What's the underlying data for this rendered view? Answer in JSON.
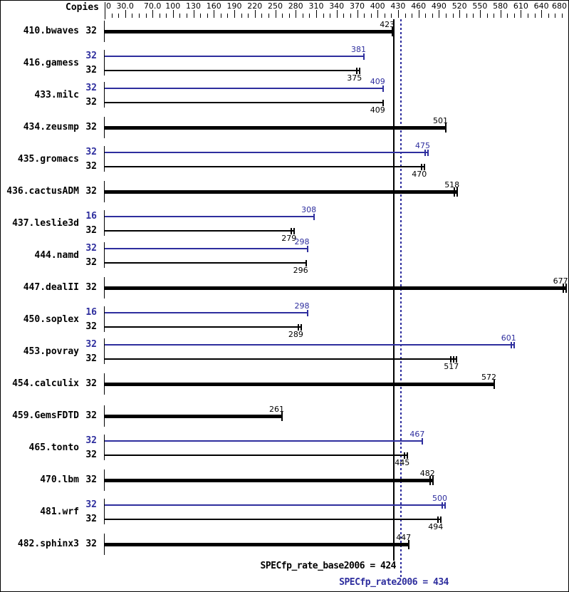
{
  "header": {
    "copies_label": "Copies"
  },
  "colors": {
    "peak": "#2e2e9e",
    "base": "#000000"
  },
  "axis": {
    "min": 0,
    "max": 680,
    "tick_step": 10,
    "labeled_ticks": [
      {
        "v": 0,
        "t": "0"
      },
      {
        "v": 30,
        "t": "30.0"
      },
      {
        "v": 70,
        "t": "70.0"
      },
      {
        "v": 100,
        "t": "100"
      },
      {
        "v": 130,
        "t": "130"
      },
      {
        "v": 160,
        "t": "160"
      },
      {
        "v": 190,
        "t": "190"
      },
      {
        "v": 220,
        "t": "220"
      },
      {
        "v": 250,
        "t": "250"
      },
      {
        "v": 280,
        "t": "280"
      },
      {
        "v": 310,
        "t": "310"
      },
      {
        "v": 340,
        "t": "340"
      },
      {
        "v": 370,
        "t": "370"
      },
      {
        "v": 400,
        "t": "400"
      },
      {
        "v": 430,
        "t": "430"
      },
      {
        "v": 460,
        "t": "460"
      },
      {
        "v": 490,
        "t": "490"
      },
      {
        "v": 520,
        "t": "520"
      },
      {
        "v": 550,
        "t": "550"
      },
      {
        "v": 580,
        "t": "580"
      },
      {
        "v": 610,
        "t": "610"
      },
      {
        "v": 640,
        "t": "640"
      },
      {
        "v": 680,
        "t": "680"
      }
    ]
  },
  "reference_lines": {
    "base": {
      "name": "SPECfp_rate_base2006",
      "value": 424,
      "text": "SPECfp_rate_base2006 = 424",
      "style": "solid"
    },
    "peak": {
      "name": "SPECfp_rate2006",
      "value": 434,
      "text": "SPECfp_rate2006 = 434",
      "style": "dotted"
    }
  },
  "chart_data": {
    "type": "bar",
    "orientation": "horizontal",
    "xlim": [
      0,
      680
    ],
    "title": "",
    "xlabel": "",
    "ylabel": "",
    "legend": "none",
    "benchmarks": [
      {
        "name": "410.bwaves",
        "runs": [
          {
            "kind": "base",
            "copies": 32,
            "value": 423,
            "marks": 1
          }
        ]
      },
      {
        "name": "416.gamess",
        "runs": [
          {
            "kind": "peak",
            "copies": 32,
            "value": 381,
            "marks": 1
          },
          {
            "kind": "base",
            "copies": 32,
            "value": 375,
            "marks": 2
          }
        ]
      },
      {
        "name": "433.milc",
        "runs": [
          {
            "kind": "peak",
            "copies": 32,
            "value": 409,
            "marks": 1
          },
          {
            "kind": "base",
            "copies": 32,
            "value": 409,
            "marks": 1
          }
        ]
      },
      {
        "name": "434.zeusmp",
        "runs": [
          {
            "kind": "base",
            "copies": 32,
            "value": 501,
            "marks": 1
          }
        ]
      },
      {
        "name": "435.gromacs",
        "runs": [
          {
            "kind": "peak",
            "copies": 32,
            "value": 475,
            "marks": 2
          },
          {
            "kind": "base",
            "copies": 32,
            "value": 470,
            "marks": 2
          }
        ]
      },
      {
        "name": "436.cactusADM",
        "runs": [
          {
            "kind": "base",
            "copies": 32,
            "value": 518,
            "marks": 2
          }
        ]
      },
      {
        "name": "437.leslie3d",
        "runs": [
          {
            "kind": "peak",
            "copies": 16,
            "value": 308,
            "marks": 1
          },
          {
            "kind": "base",
            "copies": 32,
            "value": 279,
            "marks": 2
          }
        ]
      },
      {
        "name": "444.namd",
        "runs": [
          {
            "kind": "peak",
            "copies": 32,
            "value": 298,
            "marks": 1
          },
          {
            "kind": "base",
            "copies": 32,
            "value": 296,
            "marks": 1
          }
        ]
      },
      {
        "name": "447.dealII",
        "runs": [
          {
            "kind": "base",
            "copies": 32,
            "value": 677,
            "marks": 2
          }
        ]
      },
      {
        "name": "450.soplex",
        "runs": [
          {
            "kind": "peak",
            "copies": 16,
            "value": 298,
            "marks": 1
          },
          {
            "kind": "base",
            "copies": 32,
            "value": 289,
            "marks": 2
          }
        ]
      },
      {
        "name": "453.povray",
        "runs": [
          {
            "kind": "peak",
            "copies": 32,
            "value": 601,
            "marks": 2
          },
          {
            "kind": "base",
            "copies": 32,
            "value": 517,
            "marks": 3
          }
        ]
      },
      {
        "name": "454.calculix",
        "runs": [
          {
            "kind": "base",
            "copies": 32,
            "value": 572,
            "marks": 1
          }
        ]
      },
      {
        "name": "459.GemsFDTD",
        "runs": [
          {
            "kind": "base",
            "copies": 32,
            "value": 261,
            "marks": 1
          }
        ]
      },
      {
        "name": "465.tonto",
        "runs": [
          {
            "kind": "peak",
            "copies": 32,
            "value": 467,
            "marks": 1
          },
          {
            "kind": "base",
            "copies": 32,
            "value": 445,
            "marks": 2
          }
        ]
      },
      {
        "name": "470.lbm",
        "runs": [
          {
            "kind": "base",
            "copies": 32,
            "value": 482,
            "marks": 2
          }
        ]
      },
      {
        "name": "481.wrf",
        "runs": [
          {
            "kind": "peak",
            "copies": 32,
            "value": 500,
            "marks": 2
          },
          {
            "kind": "base",
            "copies": 32,
            "value": 494,
            "marks": 2
          }
        ]
      },
      {
        "name": "482.sphinx3",
        "runs": [
          {
            "kind": "base",
            "copies": 32,
            "value": 447,
            "marks": 1
          }
        ]
      }
    ]
  }
}
